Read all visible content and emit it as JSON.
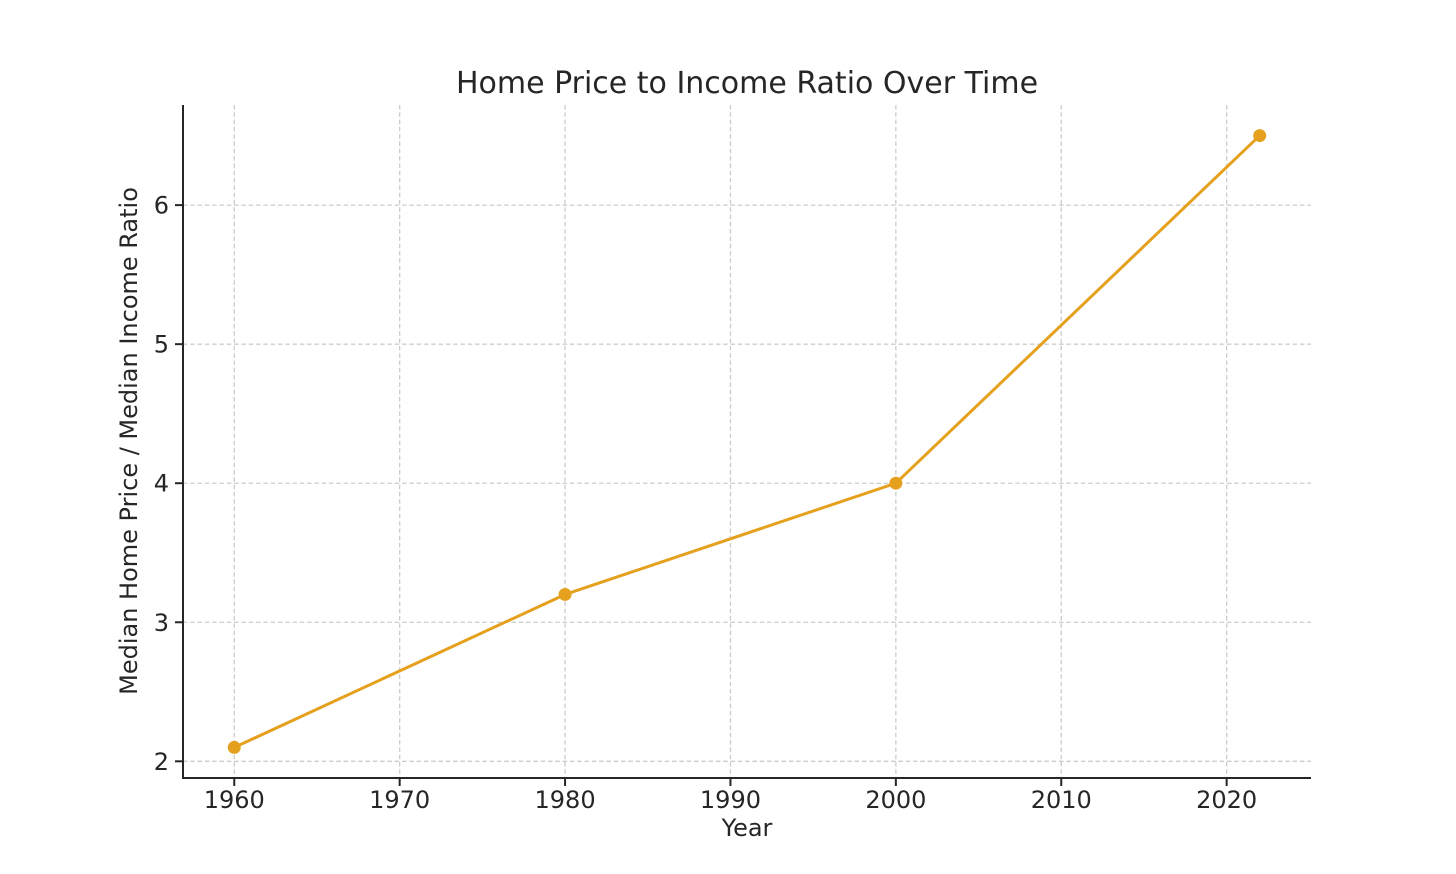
{
  "page": {
    "background": "#ffffff"
  },
  "chart_data": {
    "type": "line",
    "title": "Home Price to Income Ratio Over Time",
    "xlabel": "Year",
    "ylabel": "Median Home Price / Median Income Ratio",
    "x": [
      1960,
      1980,
      2000,
      2022
    ],
    "y": [
      2.1,
      3.2,
      4.0,
      6.5
    ],
    "xticks": [
      1960,
      1970,
      1980,
      1990,
      2000,
      2010,
      2020
    ],
    "yticks": [
      2,
      3,
      4,
      5,
      6
    ],
    "xlim": [
      1956.9,
      2025.1
    ],
    "ylim": [
      1.88,
      6.72
    ],
    "grid": true,
    "grid_style": "dashed",
    "legend": "none",
    "line_color": "#E5A11E",
    "marker": "circle",
    "grid_color": "#cccccc",
    "axis_color": "#262626",
    "text_color": "#262626"
  }
}
